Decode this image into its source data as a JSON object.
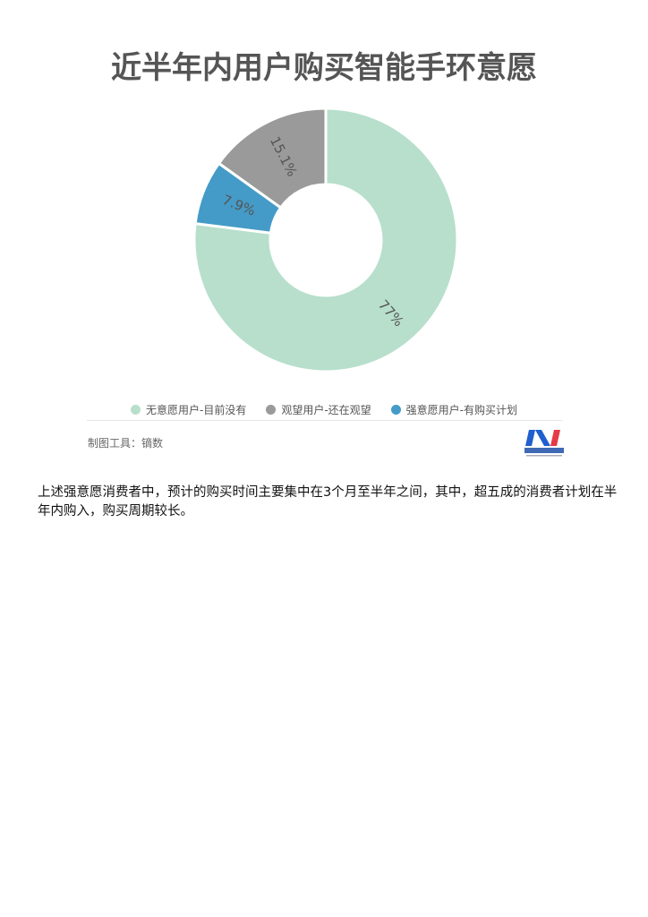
{
  "chart_data": {
    "type": "pie",
    "variant": "donut",
    "title": "近半年内用户购买智能手环意愿",
    "categories": [
      "无意愿用户-目前没有",
      "观望用户-还在观望",
      "强意愿用户-有购买计划"
    ],
    "values": [
      77,
      15.1,
      7.9
    ],
    "labels": [
      "77%",
      "15.1%",
      "7.9%"
    ],
    "colors": [
      "#b7dfcc",
      "#9a9a9a",
      "#449bc7"
    ],
    "legend_position": "bottom"
  },
  "credit": "制图工具：镝数",
  "logo_text": "每日经济新闻",
  "paragraph": "上述强意愿消费者中，预计的购买时间主要集中在3个月至半年之间，其中，超五成的消费者计划在半年内购入，购买周期较长。"
}
